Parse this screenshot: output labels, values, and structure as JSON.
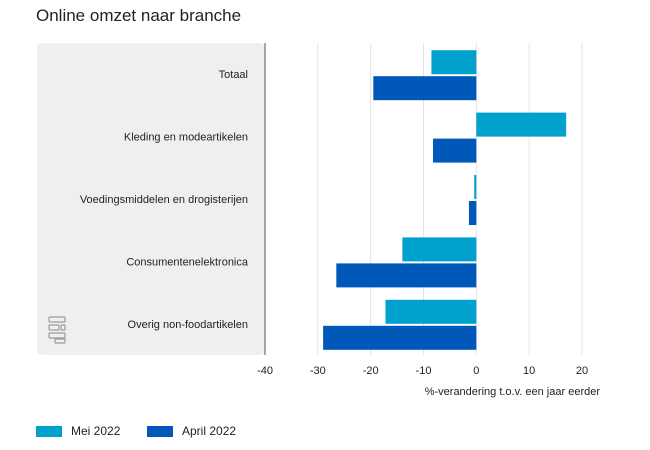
{
  "title": "Online omzet naar branche",
  "colors": {
    "mei": "#00a1cd",
    "april": "#0058b8",
    "panel": "#efefef",
    "grid": "#e3e3e3",
    "axis": "#555555"
  },
  "logo_icon": "cbs-logo-icon",
  "chart_data": {
    "type": "bar",
    "orientation": "horizontal",
    "title": "Online omzet naar branche",
    "xlabel": "%-verandering t.o.v. een jaar eerder",
    "ylabel": "",
    "categories": [
      "Totaal",
      "Kleding en modeartikelen",
      "Voedingsmiddelen en drogisterijen",
      "Consumentenelektronica",
      "Overig non-foodartikelen"
    ],
    "series": [
      {
        "name": "Mei 2022",
        "color": "#00a1cd",
        "values": [
          -8.5,
          17,
          -0.4,
          -14,
          -17.2
        ]
      },
      {
        "name": "April 2022",
        "color": "#0058b8",
        "values": [
          -19.5,
          -8.2,
          -1.4,
          -26.5,
          -29
        ]
      }
    ],
    "xlim": [
      -40,
      20
    ],
    "xticks": [
      -40,
      -30,
      -20,
      -10,
      0,
      10,
      20
    ],
    "grid": true,
    "legend": "bottom-left"
  }
}
